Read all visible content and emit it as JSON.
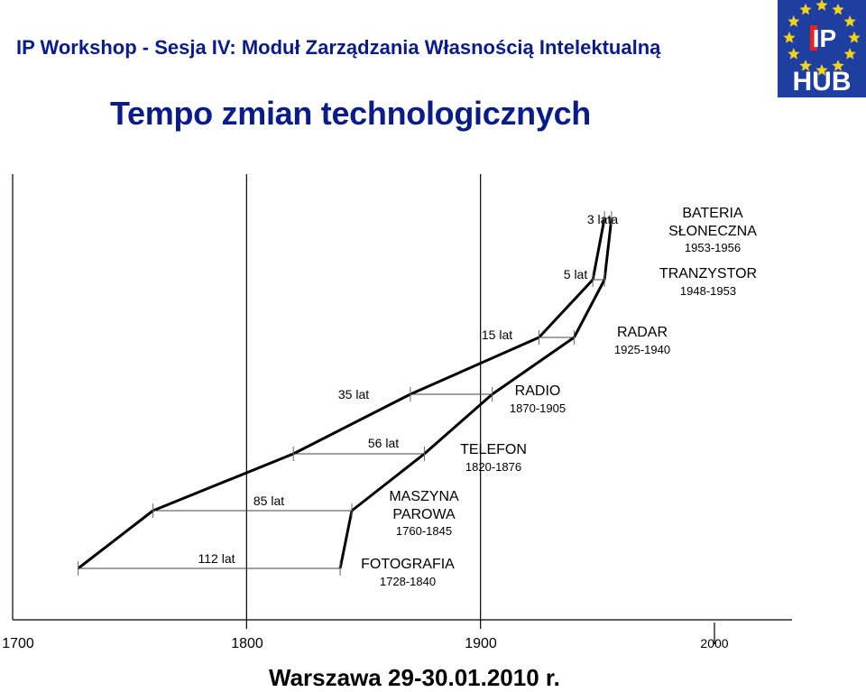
{
  "header": {
    "title": "IP Workshop - Sesja IV: Moduł Zarządzania Własnością Intelektualną"
  },
  "logo": {
    "text_ip": "IP",
    "text_hub": "HUB",
    "background": "#1e3ea0",
    "star_color": "#f2d21a",
    "accent": "#e8231f"
  },
  "slide": {
    "title": "Tempo zmian technologicznych"
  },
  "footer": {
    "text": "Warszawa 29-30.01.2010 r."
  },
  "chart_data": {
    "type": "timeline",
    "title": "Tempo zmian technologicznych",
    "x_axis": {
      "range": [
        1700,
        2000
      ],
      "ticks": [
        {
          "value": 1700,
          "label": "1700"
        },
        {
          "value": 1800,
          "label": "1800"
        },
        {
          "value": 1900,
          "label": "1900"
        },
        {
          "value": 2000,
          "label": "2000"
        }
      ]
    },
    "line_color": "#000000",
    "technologies": [
      {
        "name": "FOTOGRAFIA",
        "years": "1728-1840",
        "start": 1728,
        "end": 1840,
        "duration_label": "112 lat"
      },
      {
        "name": "MASZYNA PAROWA",
        "years": "1760-1845",
        "start": 1760,
        "end": 1845,
        "duration_label": "85 lat"
      },
      {
        "name": "TELEFON",
        "years": "1820-1876",
        "start": 1820,
        "end": 1876,
        "duration_label": "56 lat"
      },
      {
        "name": "RADIO",
        "years": "1870-1905",
        "start": 1870,
        "end": 1905,
        "duration_label": "35 lat"
      },
      {
        "name": "RADAR",
        "years": "1925-1940",
        "start": 1925,
        "end": 1940,
        "duration_label": "15 lat"
      },
      {
        "name": "TRANZYSTOR",
        "years": "1948-1953",
        "start": 1948,
        "end": 1953,
        "duration_label": "5 lat"
      },
      {
        "name": "BATERIA SŁONECZNA",
        "years": "1953-1956",
        "start": 1953,
        "end": 1956,
        "duration_label": "3 lata"
      }
    ]
  }
}
